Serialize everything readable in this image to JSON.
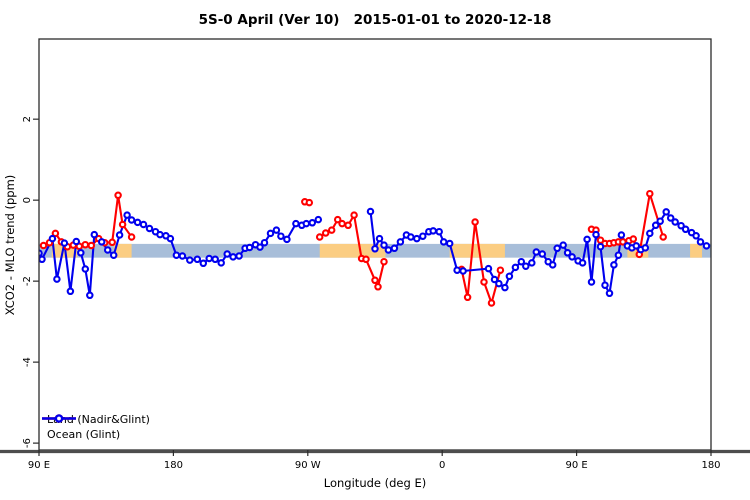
{
  "title": "5S-0 April (Ver 10)   2015-01-01 to 2020-12-18",
  "legend": {
    "items": [
      {
        "label": "Land (Nadir&Glint)",
        "color": "#ff0000"
      },
      {
        "label": "Ocean (Glint)",
        "color": "#0000ee"
      }
    ]
  },
  "chart_data": {
    "type": "scatter",
    "title": "5S-0 April (Ver 10)   2015-01-01 to 2020-12-18",
    "xlabel": "Longitude (deg E)",
    "ylabel": "XCO2 - MLO trend (ppm)",
    "xlim": [
      90,
      540
    ],
    "ylim": [
      -6.17,
      3.98
    ],
    "x_axis_note": "longitude axis wraps eastward from 90E through 180, 90W, 0, 90E to 180",
    "x_ticks": [
      {
        "value": 90,
        "label": "90 E"
      },
      {
        "value": 180,
        "label": "180"
      },
      {
        "value": 270,
        "label": "90 W"
      },
      {
        "value": 360,
        "label": "0"
      },
      {
        "value": 450,
        "label": "90 E"
      },
      {
        "value": 540,
        "label": "180"
      }
    ],
    "y_ticks": [
      {
        "value": 2,
        "label": "2"
      },
      {
        "value": 0,
        "label": "0"
      },
      {
        "value": -2,
        "label": "-2"
      },
      {
        "value": -4,
        "label": "-4"
      },
      {
        "value": -6,
        "label": "-6"
      }
    ],
    "grid": false,
    "legend_position": "bottom-left-inside",
    "band": {
      "description": "land/ocean strip along 5S-0 latitude",
      "y_top": -1.08,
      "y_bottom": -1.42,
      "ocean_color": "#a8bed9",
      "land_color": "#fbcd82",
      "land_segments_x": [
        [
          98.5,
          115.5
        ],
        [
          140,
          152
        ],
        [
          278,
          322
        ],
        [
          365,
          402
        ],
        [
          484,
          498
        ],
        [
          526,
          534
        ]
      ]
    },
    "series": [
      {
        "name": "Land (Nadir&Glint)",
        "color": "#ff0000",
        "marker": "open-circle",
        "segments": [
          [
            [
              93,
              -1.12
            ],
            [
              97,
              -1.05
            ],
            [
              101,
              -0.82
            ],
            [
              105,
              -1.03
            ],
            [
              109,
              -1.15
            ],
            [
              113,
              -1.11
            ],
            [
              117,
              -1.14
            ],
            [
              121,
              -1.1
            ],
            [
              125,
              -1.12
            ],
            [
              130,
              -0.95
            ],
            [
              134,
              -1.05
            ],
            [
              139,
              -1.04
            ],
            [
              143,
              0.12
            ],
            [
              146,
              -0.6
            ],
            [
              152,
              -0.91
            ]
          ],
          [
            [
              268,
              -0.04
            ],
            [
              271,
              -0.06
            ]
          ],
          [
            [
              278,
              -0.91
            ],
            [
              282,
              -0.81
            ],
            [
              286,
              -0.74
            ],
            [
              290,
              -0.48
            ],
            [
              293,
              -0.58
            ],
            [
              297,
              -0.62
            ],
            [
              301,
              -0.37
            ],
            [
              306,
              -1.44
            ],
            [
              309,
              -1.46
            ],
            [
              315,
              -1.98
            ],
            [
              317,
              -2.14
            ],
            [
              321,
              -1.52
            ]
          ],
          [
            [
              373,
              -1.71
            ],
            [
              377,
              -2.4
            ],
            [
              382,
              -0.54
            ],
            [
              388,
              -2.02
            ],
            [
              393,
              -2.54
            ],
            [
              399,
              -1.73
            ]
          ],
          [
            [
              460,
              -0.72
            ],
            [
              463,
              -0.74
            ],
            [
              466,
              -0.99
            ],
            [
              469,
              -1.07
            ],
            [
              472,
              -1.07
            ],
            [
              475,
              -1.05
            ],
            [
              478,
              -1.03
            ],
            [
              481,
              -1.03
            ],
            [
              485,
              -1.0
            ],
            [
              488,
              -0.96
            ],
            [
              492,
              -1.34
            ],
            [
              499,
              0.16
            ],
            [
              508,
              -0.91
            ]
          ]
        ]
      },
      {
        "name": "Ocean (Glint)",
        "color": "#0000ee",
        "marker": "open-circle",
        "segments": [
          [
            [
              90,
              -1.31
            ],
            [
              92,
              -1.46
            ],
            [
              99,
              -0.95
            ],
            [
              102,
              -1.95
            ],
            [
              107,
              -1.06
            ],
            [
              111,
              -2.25
            ],
            [
              115,
              -1.02
            ],
            [
              118,
              -1.3
            ],
            [
              121,
              -1.7
            ],
            [
              124,
              -2.35
            ],
            [
              127,
              -0.85
            ],
            [
              132,
              -1.03
            ],
            [
              136,
              -1.23
            ],
            [
              140,
              -1.36
            ],
            [
              144,
              -0.86
            ],
            [
              149,
              -0.37
            ],
            [
              152,
              -0.49
            ],
            [
              156,
              -0.55
            ],
            [
              160,
              -0.6
            ],
            [
              164,
              -0.7
            ],
            [
              168,
              -0.78
            ],
            [
              171,
              -0.85
            ],
            [
              175,
              -0.88
            ],
            [
              178,
              -0.95
            ],
            [
              182,
              -1.36
            ],
            [
              186,
              -1.38
            ],
            [
              191,
              -1.48
            ],
            [
              196,
              -1.46
            ],
            [
              200,
              -1.56
            ],
            [
              204,
              -1.44
            ],
            [
              208,
              -1.46
            ],
            [
              212,
              -1.55
            ],
            [
              216,
              -1.33
            ],
            [
              220,
              -1.4
            ],
            [
              224,
              -1.38
            ],
            [
              228,
              -1.19
            ],
            [
              231,
              -1.17
            ],
            [
              235,
              -1.1
            ],
            [
              238,
              -1.16
            ],
            [
              241,
              -1.05
            ],
            [
              245,
              -0.82
            ],
            [
              249,
              -0.74
            ],
            [
              252,
              -0.89
            ],
            [
              256,
              -0.97
            ],
            [
              262,
              -0.58
            ],
            [
              266,
              -0.62
            ],
            [
              269,
              -0.58
            ],
            [
              273,
              -0.56
            ],
            [
              277,
              -0.48
            ]
          ],
          [
            [
              312,
              -0.28
            ],
            [
              315,
              -1.2
            ],
            [
              318,
              -0.95
            ],
            [
              321,
              -1.11
            ],
            [
              324,
              -1.23
            ],
            [
              328,
              -1.19
            ],
            [
              332,
              -1.03
            ],
            [
              336,
              -0.86
            ],
            [
              339,
              -0.91
            ],
            [
              343,
              -0.95
            ],
            [
              347,
              -0.89
            ],
            [
              351,
              -0.78
            ],
            [
              354,
              -0.76
            ],
            [
              358,
              -0.78
            ],
            [
              361,
              -1.03
            ],
            [
              365,
              -1.07
            ],
            [
              370,
              -1.73
            ],
            [
              374,
              -1.75
            ],
            [
              391,
              -1.69
            ],
            [
              395,
              -1.96
            ],
            [
              398,
              -2.06
            ],
            [
              402,
              -2.16
            ],
            [
              405,
              -1.88
            ],
            [
              409,
              -1.66
            ],
            [
              413,
              -1.52
            ],
            [
              416,
              -1.63
            ],
            [
              420,
              -1.55
            ],
            [
              423,
              -1.28
            ],
            [
              427,
              -1.33
            ],
            [
              431,
              -1.52
            ],
            [
              434,
              -1.6
            ],
            [
              437,
              -1.19
            ],
            [
              441,
              -1.11
            ],
            [
              444,
              -1.3
            ],
            [
              447,
              -1.4
            ],
            [
              451,
              -1.5
            ],
            [
              454,
              -1.55
            ],
            [
              457,
              -0.97
            ],
            [
              460,
              -2.02
            ],
            [
              463,
              -0.85
            ],
            [
              466,
              -1.15
            ],
            [
              469,
              -2.1
            ],
            [
              472,
              -2.3
            ],
            [
              475,
              -1.6
            ],
            [
              478,
              -1.36
            ],
            [
              480,
              -0.86
            ],
            [
              484,
              -1.13
            ],
            [
              487,
              -1.18
            ],
            [
              490,
              -1.13
            ],
            [
              493,
              -1.22
            ],
            [
              496,
              -1.18
            ],
            [
              499,
              -0.82
            ],
            [
              503,
              -0.62
            ],
            [
              506,
              -0.52
            ],
            [
              510,
              -0.29
            ],
            [
              513,
              -0.44
            ],
            [
              516,
              -0.54
            ],
            [
              520,
              -0.63
            ],
            [
              523,
              -0.72
            ],
            [
              527,
              -0.8
            ],
            [
              530,
              -0.88
            ],
            [
              533,
              -1.03
            ],
            [
              537,
              -1.13
            ]
          ]
        ]
      }
    ]
  }
}
